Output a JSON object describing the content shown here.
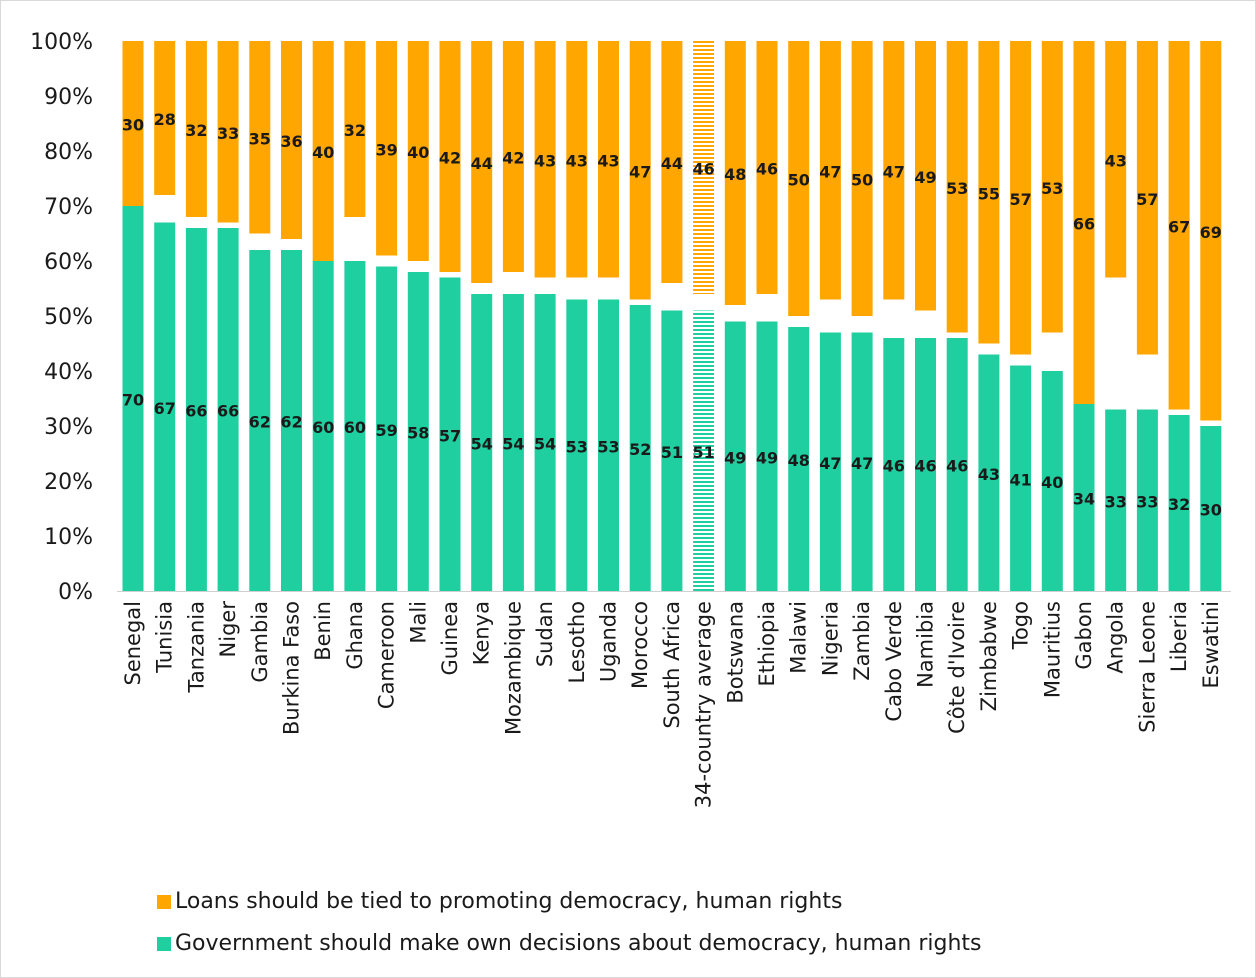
{
  "chart_data": {
    "type": "bar",
    "stacked": true,
    "y_axis": {
      "min": 0,
      "max": 100,
      "tick_labels": [
        "0%",
        "10%",
        "20%",
        "30%",
        "40%",
        "50%",
        "60%",
        "70%",
        "80%",
        "90%",
        "100%"
      ]
    },
    "categories": [
      "Senegal",
      "Tunisia",
      "Tanzania",
      "Niger",
      "Gambia",
      "Burkina Faso",
      "Benin",
      "Ghana",
      "Cameroon",
      "Mali",
      "Guinea",
      "Kenya",
      "Mozambique",
      "Sudan",
      "Lesotho",
      "Uganda",
      "Morocco",
      "South Africa",
      "34-country average",
      "Botswana",
      "Ethiopia",
      "Malawi",
      "Nigeria",
      "Zambia",
      "Cabo Verde",
      "Namibia",
      "Côte d'Ivoire",
      "Zimbabwe",
      "Togo",
      "Mauritius",
      "Gabon",
      "Angola",
      "Sierra Leone",
      "Liberia",
      "Eswatini"
    ],
    "series": [
      {
        "name": "Government should make own decisions about democracy, human rights",
        "color": "#20cfa0",
        "values": [
          70,
          67,
          66,
          66,
          62,
          62,
          60,
          60,
          59,
          58,
          57,
          54,
          54,
          54,
          53,
          53,
          52,
          51,
          51,
          49,
          49,
          48,
          47,
          47,
          46,
          46,
          46,
          43,
          41,
          40,
          34,
          33,
          33,
          32,
          30
        ]
      },
      {
        "name": "Loans should be tied to promoting democracy, human rights",
        "color": "#ffa600",
        "values": [
          30,
          28,
          32,
          33,
          35,
          36,
          40,
          32,
          39,
          40,
          42,
          44,
          42,
          43,
          43,
          43,
          47,
          44,
          46,
          48,
          46,
          50,
          47,
          50,
          47,
          49,
          53,
          55,
          57,
          53,
          66,
          43,
          57,
          67,
          69
        ]
      }
    ],
    "highlight_category": "34-country average",
    "gridlines": false,
    "legend_position": "bottom"
  },
  "legend": {
    "items": [
      {
        "label": "Loans should be tied to promoting democracy, human rights",
        "color": "#ffa600"
      },
      {
        "label": "Government should make own decisions about democracy, human rights",
        "color": "#20cfa0"
      }
    ]
  }
}
